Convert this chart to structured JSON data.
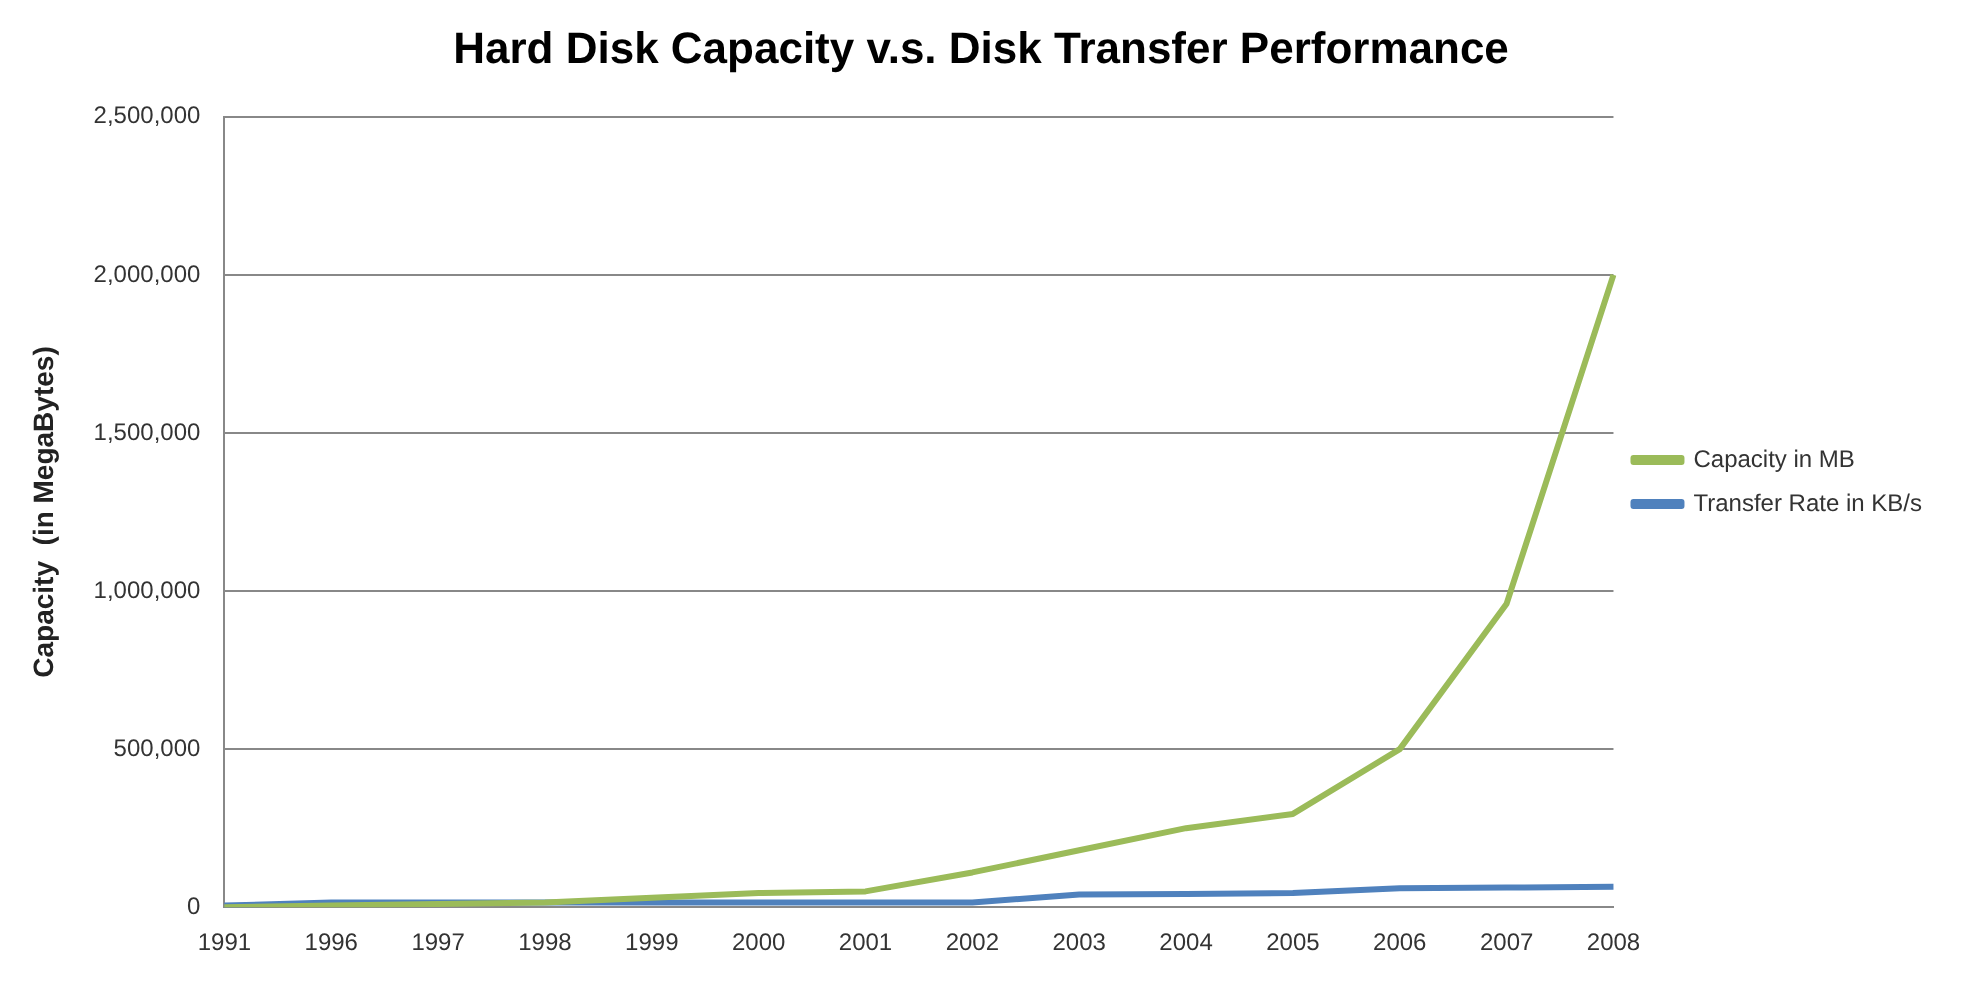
{
  "chart_data": {
    "type": "line",
    "title": "Hard Disk Capacity v.s. Disk Transfer Performance",
    "ylabel": "Capacity  (in MegaBytes)",
    "categories": [
      "1991",
      "1996",
      "1997",
      "1998",
      "1999",
      "2000",
      "2001",
      "2002",
      "2003",
      "2004",
      "2005",
      "2006",
      "2007",
      "2008"
    ],
    "series": [
      {
        "name": "Capacity in MB",
        "color": "#9bbb59",
        "values": [
          0,
          5000,
          10000,
          15000,
          30000,
          45000,
          50000,
          110000,
          180000,
          250000,
          295000,
          500000,
          960000,
          2000000
        ]
      },
      {
        "name": "Transfer Rate in KB/s",
        "color": "#4f81bd",
        "values": [
          5000,
          15000,
          15000,
          15000,
          15000,
          15000,
          15000,
          15000,
          40000,
          42000,
          45000,
          60000,
          62000,
          65000
        ]
      }
    ],
    "ylim": [
      0,
      2500000
    ],
    "yticks": [
      0,
      {
        "value": 500000,
        "label": "500,000"
      },
      {
        "value": 1000000,
        "label": "1,000,000"
      },
      {
        "value": 1500000,
        "label": "1,500,000"
      },
      {
        "value": 2000000,
        "label": "2,000,000"
      },
      {
        "value": 2500000,
        "label": "2,500,000"
      }
    ],
    "grid": "y",
    "legend": "right",
    "marker": "none",
    "line_style": "solid"
  }
}
